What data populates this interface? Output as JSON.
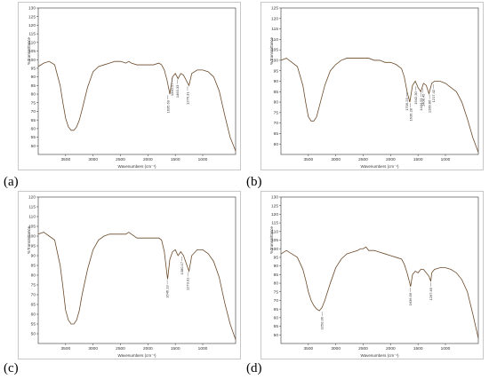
{
  "chart_data": [
    {
      "type": "line",
      "panel_label": "(a)",
      "xlabel": "Wavenumbers (cm⁻¹)",
      "ylabel": "%Transmittance",
      "xlim": [
        4000,
        400
      ],
      "ylim": [
        45,
        130
      ],
      "x_ticks": [
        "3500",
        "3000",
        "2500",
        "2000",
        "1500",
        "1000"
      ],
      "y_ticks": [
        "50",
        "55",
        "60",
        "65",
        "70",
        "75",
        "80",
        "85",
        "90",
        "95",
        "100",
        "105",
        "110",
        "115",
        "120",
        "125",
        "130"
      ],
      "series": [
        {
          "x": [
            4000,
            3900,
            3800,
            3700,
            3600,
            3550,
            3500,
            3450,
            3400,
            3350,
            3300,
            3250,
            3200,
            3100,
            3000,
            2900,
            2800,
            2700,
            2600,
            2500,
            2400,
            2350,
            2300,
            2200,
            2100,
            2000,
            1900,
            1800,
            1750,
            1700,
            1650,
            1600,
            1550,
            1500,
            1450,
            1400,
            1350,
            1300,
            1250,
            1200,
            1100,
            1000,
            900,
            800,
            700,
            600,
            500,
            400
          ],
          "y": [
            96,
            98,
            99,
            97,
            85,
            75,
            66,
            61,
            59,
            59,
            61,
            65,
            71,
            84,
            93,
            96,
            97,
            98,
            99,
            99,
            98,
            99,
            98,
            97,
            97,
            97,
            97,
            98,
            97,
            94,
            88,
            80,
            90,
            92,
            89,
            92,
            91,
            88,
            85,
            92,
            94,
            94,
            93,
            90,
            82,
            68,
            55,
            47
          ]
        }
      ],
      "annotations": [
        {
          "x": 1635.6,
          "y": 80,
          "text": "1635.60"
        },
        {
          "x": 1560.17,
          "y": 90,
          "text": "1560.17"
        },
        {
          "x": 1463.33,
          "y": 89,
          "text": "1463.33"
        },
        {
          "x": 1276.31,
          "y": 85,
          "text": "1276.31"
        }
      ]
    },
    {
      "type": "line",
      "panel_label": "(b)",
      "xlabel": "Wavenumbers (cm⁻¹)",
      "ylabel": "%Transmittance",
      "xlim": [
        4000,
        400
      ],
      "ylim": [
        55,
        125
      ],
      "x_ticks": [
        "3500",
        "3000",
        "2500",
        "2000",
        "1500",
        "1000"
      ],
      "y_ticks": [
        "60",
        "65",
        "70",
        "75",
        "80",
        "85",
        "90",
        "95",
        "100",
        "105",
        "110",
        "115",
        "120",
        "125"
      ],
      "series": [
        {
          "x": [
            4000,
            3900,
            3800,
            3700,
            3600,
            3550,
            3500,
            3450,
            3400,
            3350,
            3300,
            3200,
            3100,
            3000,
            2900,
            2800,
            2700,
            2600,
            2500,
            2400,
            2300,
            2200,
            2100,
            2000,
            1900,
            1800,
            1750,
            1700,
            1650,
            1600,
            1550,
            1500,
            1450,
            1400,
            1350,
            1300,
            1250,
            1200,
            1100,
            1000,
            900,
            800,
            700,
            600,
            500,
            400
          ],
          "y": [
            100,
            101,
            99,
            97,
            88,
            80,
            73,
            71,
            71,
            73,
            78,
            88,
            95,
            98,
            100,
            101,
            101,
            101,
            101,
            101,
            100,
            100,
            99,
            99,
            98,
            96,
            92,
            85,
            80,
            88,
            90,
            87,
            85,
            89,
            88,
            84,
            89,
            90,
            90,
            89,
            87,
            85,
            80,
            72,
            63,
            56
          ]
        }
      ],
      "annotations": [
        {
          "x": 1709.23,
          "y": 85,
          "text": "1709.23"
        },
        {
          "x": 1636.28,
          "y": 80,
          "text": "1636.28"
        },
        {
          "x": 1542.3,
          "y": 88,
          "text": "1542.30"
        },
        {
          "x": 1444.91,
          "y": 85,
          "text": "1444.91"
        },
        {
          "x": 1408.45,
          "y": 87,
          "text": "1408.45"
        },
        {
          "x": 1289.86,
          "y": 84,
          "text": "1289.86"
        },
        {
          "x": 1217.42,
          "y": 89,
          "text": "1217.42"
        }
      ]
    },
    {
      "type": "line",
      "panel_label": "(c)",
      "xlabel": "Wavenumbers (cm⁻¹)",
      "ylabel": "%Transmittance",
      "xlim": [
        4000,
        400
      ],
      "ylim": [
        45,
        120
      ],
      "x_ticks": [
        "3500",
        "3000",
        "2500",
        "2000",
        "1500",
        "1000"
      ],
      "y_ticks": [
        "50",
        "55",
        "60",
        "65",
        "70",
        "75",
        "80",
        "85",
        "90",
        "95",
        "100",
        "105",
        "110",
        "115",
        "120"
      ],
      "series": [
        {
          "x": [
            4000,
            3900,
            3800,
            3700,
            3600,
            3550,
            3500,
            3450,
            3400,
            3350,
            3300,
            3250,
            3200,
            3100,
            3000,
            2900,
            2800,
            2700,
            2600,
            2500,
            2400,
            2350,
            2300,
            2200,
            2100,
            2000,
            1900,
            1800,
            1750,
            1700,
            1650,
            1640,
            1600,
            1550,
            1500,
            1450,
            1400,
            1350,
            1300,
            1250,
            1200,
            1100,
            1000,
            900,
            800,
            700,
            600,
            500,
            400
          ],
          "y": [
            101,
            102,
            100,
            98,
            85,
            74,
            62,
            57,
            55,
            55,
            57,
            62,
            70,
            83,
            93,
            98,
            100,
            101,
            101,
            101,
            101,
            102,
            101,
            99,
            99,
            99,
            99,
            99,
            98,
            92,
            80,
            78,
            88,
            92,
            93,
            90,
            92,
            90,
            86,
            82,
            90,
            93,
            93,
            91,
            87,
            79,
            66,
            55,
            47
          ]
        }
      ],
      "annotations": [
        {
          "x": 1646.13,
          "y": 78,
          "text": "1646.13"
        },
        {
          "x": 1380.17,
          "y": 90,
          "text": "1380.17"
        },
        {
          "x": 1273.01,
          "y": 82,
          "text": "1273.01"
        }
      ]
    },
    {
      "type": "line",
      "panel_label": "(d)",
      "xlabel": "Wavenumbers (cm⁻¹)",
      "ylabel": "%Transmittance",
      "xlim": [
        4000,
        400
      ],
      "ylim": [
        45,
        130
      ],
      "x_ticks": [
        "3500",
        "3000",
        "2500",
        "2000",
        "1500",
        "1000"
      ],
      "y_ticks": [
        "50",
        "55",
        "60",
        "65",
        "70",
        "75",
        "80",
        "85",
        "90",
        "95",
        "100",
        "105",
        "110",
        "115",
        "120",
        "125",
        "130"
      ],
      "series": [
        {
          "x": [
            4000,
            3900,
            3800,
            3700,
            3600,
            3550,
            3500,
            3450,
            3400,
            3350,
            3300,
            3250,
            3200,
            3100,
            3000,
            2900,
            2800,
            2700,
            2600,
            2550,
            2500,
            2450,
            2400,
            2300,
            2200,
            2100,
            2000,
            1900,
            1800,
            1750,
            1700,
            1650,
            1636,
            1600,
            1550,
            1500,
            1450,
            1400,
            1350,
            1300,
            1267,
            1250,
            1200,
            1100,
            1000,
            900,
            800,
            700,
            600,
            500,
            400
          ],
          "y": [
            97,
            99,
            97,
            95,
            88,
            82,
            75,
            70,
            67,
            65,
            64,
            66,
            70,
            80,
            89,
            94,
            97,
            98,
            99,
            100,
            100,
            101,
            99,
            99,
            98,
            97,
            96,
            95,
            94,
            91,
            86,
            80,
            78,
            85,
            87,
            86,
            88,
            88,
            86,
            84,
            81,
            86,
            88,
            89,
            89,
            88,
            86,
            82,
            75,
            62,
            48
          ]
        }
      ],
      "annotations": [
        {
          "x": 3250.36,
          "y": 64,
          "text": "3250.36"
        },
        {
          "x": 1636.56,
          "y": 78,
          "text": "1636.56"
        },
        {
          "x": 1267.46,
          "y": 81,
          "text": "1267.46"
        }
      ]
    }
  ]
}
